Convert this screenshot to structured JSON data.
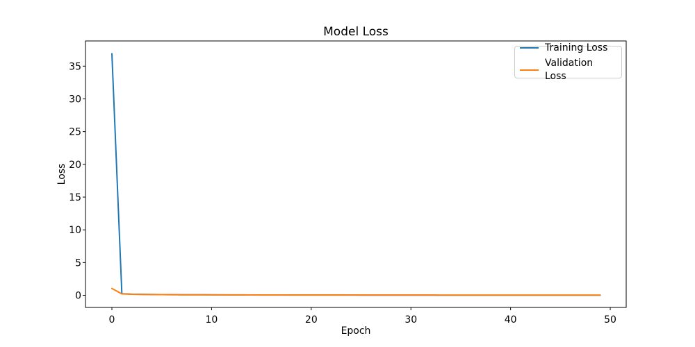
{
  "chart_data": {
    "type": "line",
    "title": "Model Loss",
    "xlabel": "Epoch",
    "ylabel": "Loss",
    "x": [
      0,
      1,
      2,
      3,
      4,
      5,
      6,
      7,
      8,
      9,
      10,
      11,
      12,
      13,
      14,
      15,
      16,
      17,
      18,
      19,
      20,
      21,
      22,
      23,
      24,
      25,
      26,
      27,
      28,
      29,
      30,
      31,
      32,
      33,
      34,
      35,
      36,
      37,
      38,
      39,
      40,
      41,
      42,
      43,
      44,
      45,
      46,
      47,
      48,
      49
    ],
    "series": [
      {
        "name": "Training Loss",
        "color": "#1f77b4",
        "values": [
          36.9,
          0.25,
          0.18,
          0.15,
          0.13,
          0.11,
          0.1,
          0.09,
          0.08,
          0.08,
          0.07,
          0.07,
          0.06,
          0.06,
          0.06,
          0.05,
          0.05,
          0.05,
          0.05,
          0.04,
          0.04,
          0.04,
          0.04,
          0.04,
          0.04,
          0.03,
          0.03,
          0.03,
          0.03,
          0.03,
          0.03,
          0.03,
          0.03,
          0.02,
          0.02,
          0.02,
          0.02,
          0.02,
          0.02,
          0.02,
          0.02,
          0.02,
          0.02,
          0.02,
          0.02,
          0.02,
          0.02,
          0.02,
          0.02,
          0.02
        ]
      },
      {
        "name": "Validation Loss",
        "color": "#ff7f0e",
        "values": [
          1.05,
          0.22,
          0.17,
          0.14,
          0.12,
          0.11,
          0.1,
          0.09,
          0.09,
          0.08,
          0.08,
          0.07,
          0.07,
          0.07,
          0.06,
          0.06,
          0.06,
          0.06,
          0.05,
          0.05,
          0.05,
          0.05,
          0.05,
          0.05,
          0.04,
          0.04,
          0.04,
          0.04,
          0.04,
          0.04,
          0.04,
          0.04,
          0.04,
          0.03,
          0.03,
          0.03,
          0.03,
          0.03,
          0.03,
          0.03,
          0.03,
          0.03,
          0.03,
          0.03,
          0.03,
          0.03,
          0.03,
          0.03,
          0.03,
          0.03
        ]
      }
    ],
    "xlim": [
      -2.65,
      51.6
    ],
    "ylim": [
      -1.85,
      38.85
    ],
    "xticks": [
      0,
      10,
      20,
      30,
      40,
      50
    ],
    "yticks": [
      0,
      5,
      10,
      15,
      20,
      25,
      30,
      35
    ],
    "grid": false,
    "legend_position": "upper right",
    "axis_color": "#000000",
    "background_color": "#ffffff"
  }
}
